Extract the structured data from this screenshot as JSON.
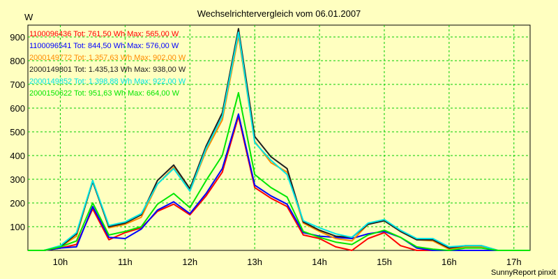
{
  "chart_data": {
    "type": "line",
    "title": "Wechselrichtervergleich vom 06.01.2007",
    "ylabel": "W",
    "xlabel": "",
    "footer": "SunnyReport pinxit",
    "ylim": [
      0,
      950
    ],
    "y_ticks": [
      100,
      200,
      300,
      400,
      500,
      600,
      700,
      800,
      900
    ],
    "x_ticks": [
      "10h",
      "11h",
      "12h",
      "13h",
      "14h",
      "15h",
      "16h",
      "17h"
    ],
    "grid": true,
    "legend_position": "top-left",
    "x": [
      "09:30",
      "09:45",
      "10:00",
      "10:15",
      "10:30",
      "10:45",
      "11:00",
      "11:15",
      "11:30",
      "11:45",
      "12:00",
      "12:15",
      "12:30",
      "12:45",
      "13:00",
      "13:15",
      "13:30",
      "13:45",
      "14:00",
      "14:15",
      "14:30",
      "14:45",
      "15:00",
      "15:15",
      "15:30",
      "15:45",
      "16:00",
      "16:15",
      "16:30",
      "16:45",
      "17:00",
      "17:15"
    ],
    "series": [
      {
        "name": "1100096436 Tot: 761,50 Wh Max: 565,00 W",
        "color": "#ff0000",
        "values": [
          0,
          0,
          10,
          25,
          175,
          45,
          75,
          95,
          165,
          195,
          150,
          230,
          330,
          565,
          265,
          220,
          185,
          65,
          50,
          15,
          0,
          50,
          75,
          20,
          0,
          0,
          0,
          0,
          0,
          0,
          0,
          0
        ]
      },
      {
        "name": "1100096541 Tot: 844,50 Wh Max: 576,00 W",
        "color": "#0000ff",
        "values": [
          0,
          0,
          10,
          15,
          185,
          55,
          50,
          90,
          170,
          205,
          155,
          240,
          345,
          575,
          275,
          230,
          195,
          75,
          60,
          55,
          50,
          70,
          80,
          55,
          10,
          0,
          0,
          0,
          0,
          0,
          0,
          0
        ]
      },
      {
        "name": "2000149772 Tot: 1.357,63 Wh Max: 902,00 W",
        "color": "#ff8c00",
        "values": [
          0,
          0,
          15,
          60,
          295,
          95,
          110,
          140,
          280,
          350,
          250,
          420,
          550,
          905,
          460,
          370,
          330,
          115,
          80,
          50,
          40,
          110,
          130,
          80,
          45,
          40,
          5,
          15,
          15,
          0,
          0,
          0
        ]
      },
      {
        "name": "2000149801 Tot: 1.435,13 Wh Max: 938,00 W",
        "color": "#202020",
        "values": [
          0,
          0,
          15,
          70,
          290,
          100,
          115,
          150,
          295,
          360,
          260,
          440,
          580,
          935,
          480,
          395,
          345,
          120,
          85,
          60,
          55,
          110,
          125,
          80,
          45,
          45,
          10,
          20,
          20,
          0,
          0,
          0
        ]
      },
      {
        "name": "2000149852 Tot: 1.398,88 Wh Max: 922,00 W",
        "color": "#00e5e5",
        "values": [
          0,
          0,
          20,
          75,
          295,
          105,
          120,
          155,
          280,
          345,
          250,
          430,
          565,
          920,
          455,
          380,
          320,
          125,
          95,
          70,
          55,
          115,
          130,
          85,
          50,
          50,
          15,
          20,
          20,
          0,
          0,
          0
        ]
      },
      {
        "name": "2000150622 Tot: 951,63 Wh Max: 664,00 W",
        "color": "#00e600",
        "values": [
          0,
          0,
          15,
          40,
          200,
          65,
          80,
          100,
          195,
          240,
          180,
          295,
          400,
          665,
          320,
          265,
          225,
          80,
          55,
          35,
          25,
          65,
          85,
          55,
          15,
          5,
          0,
          10,
          10,
          0,
          0,
          0
        ]
      }
    ]
  }
}
